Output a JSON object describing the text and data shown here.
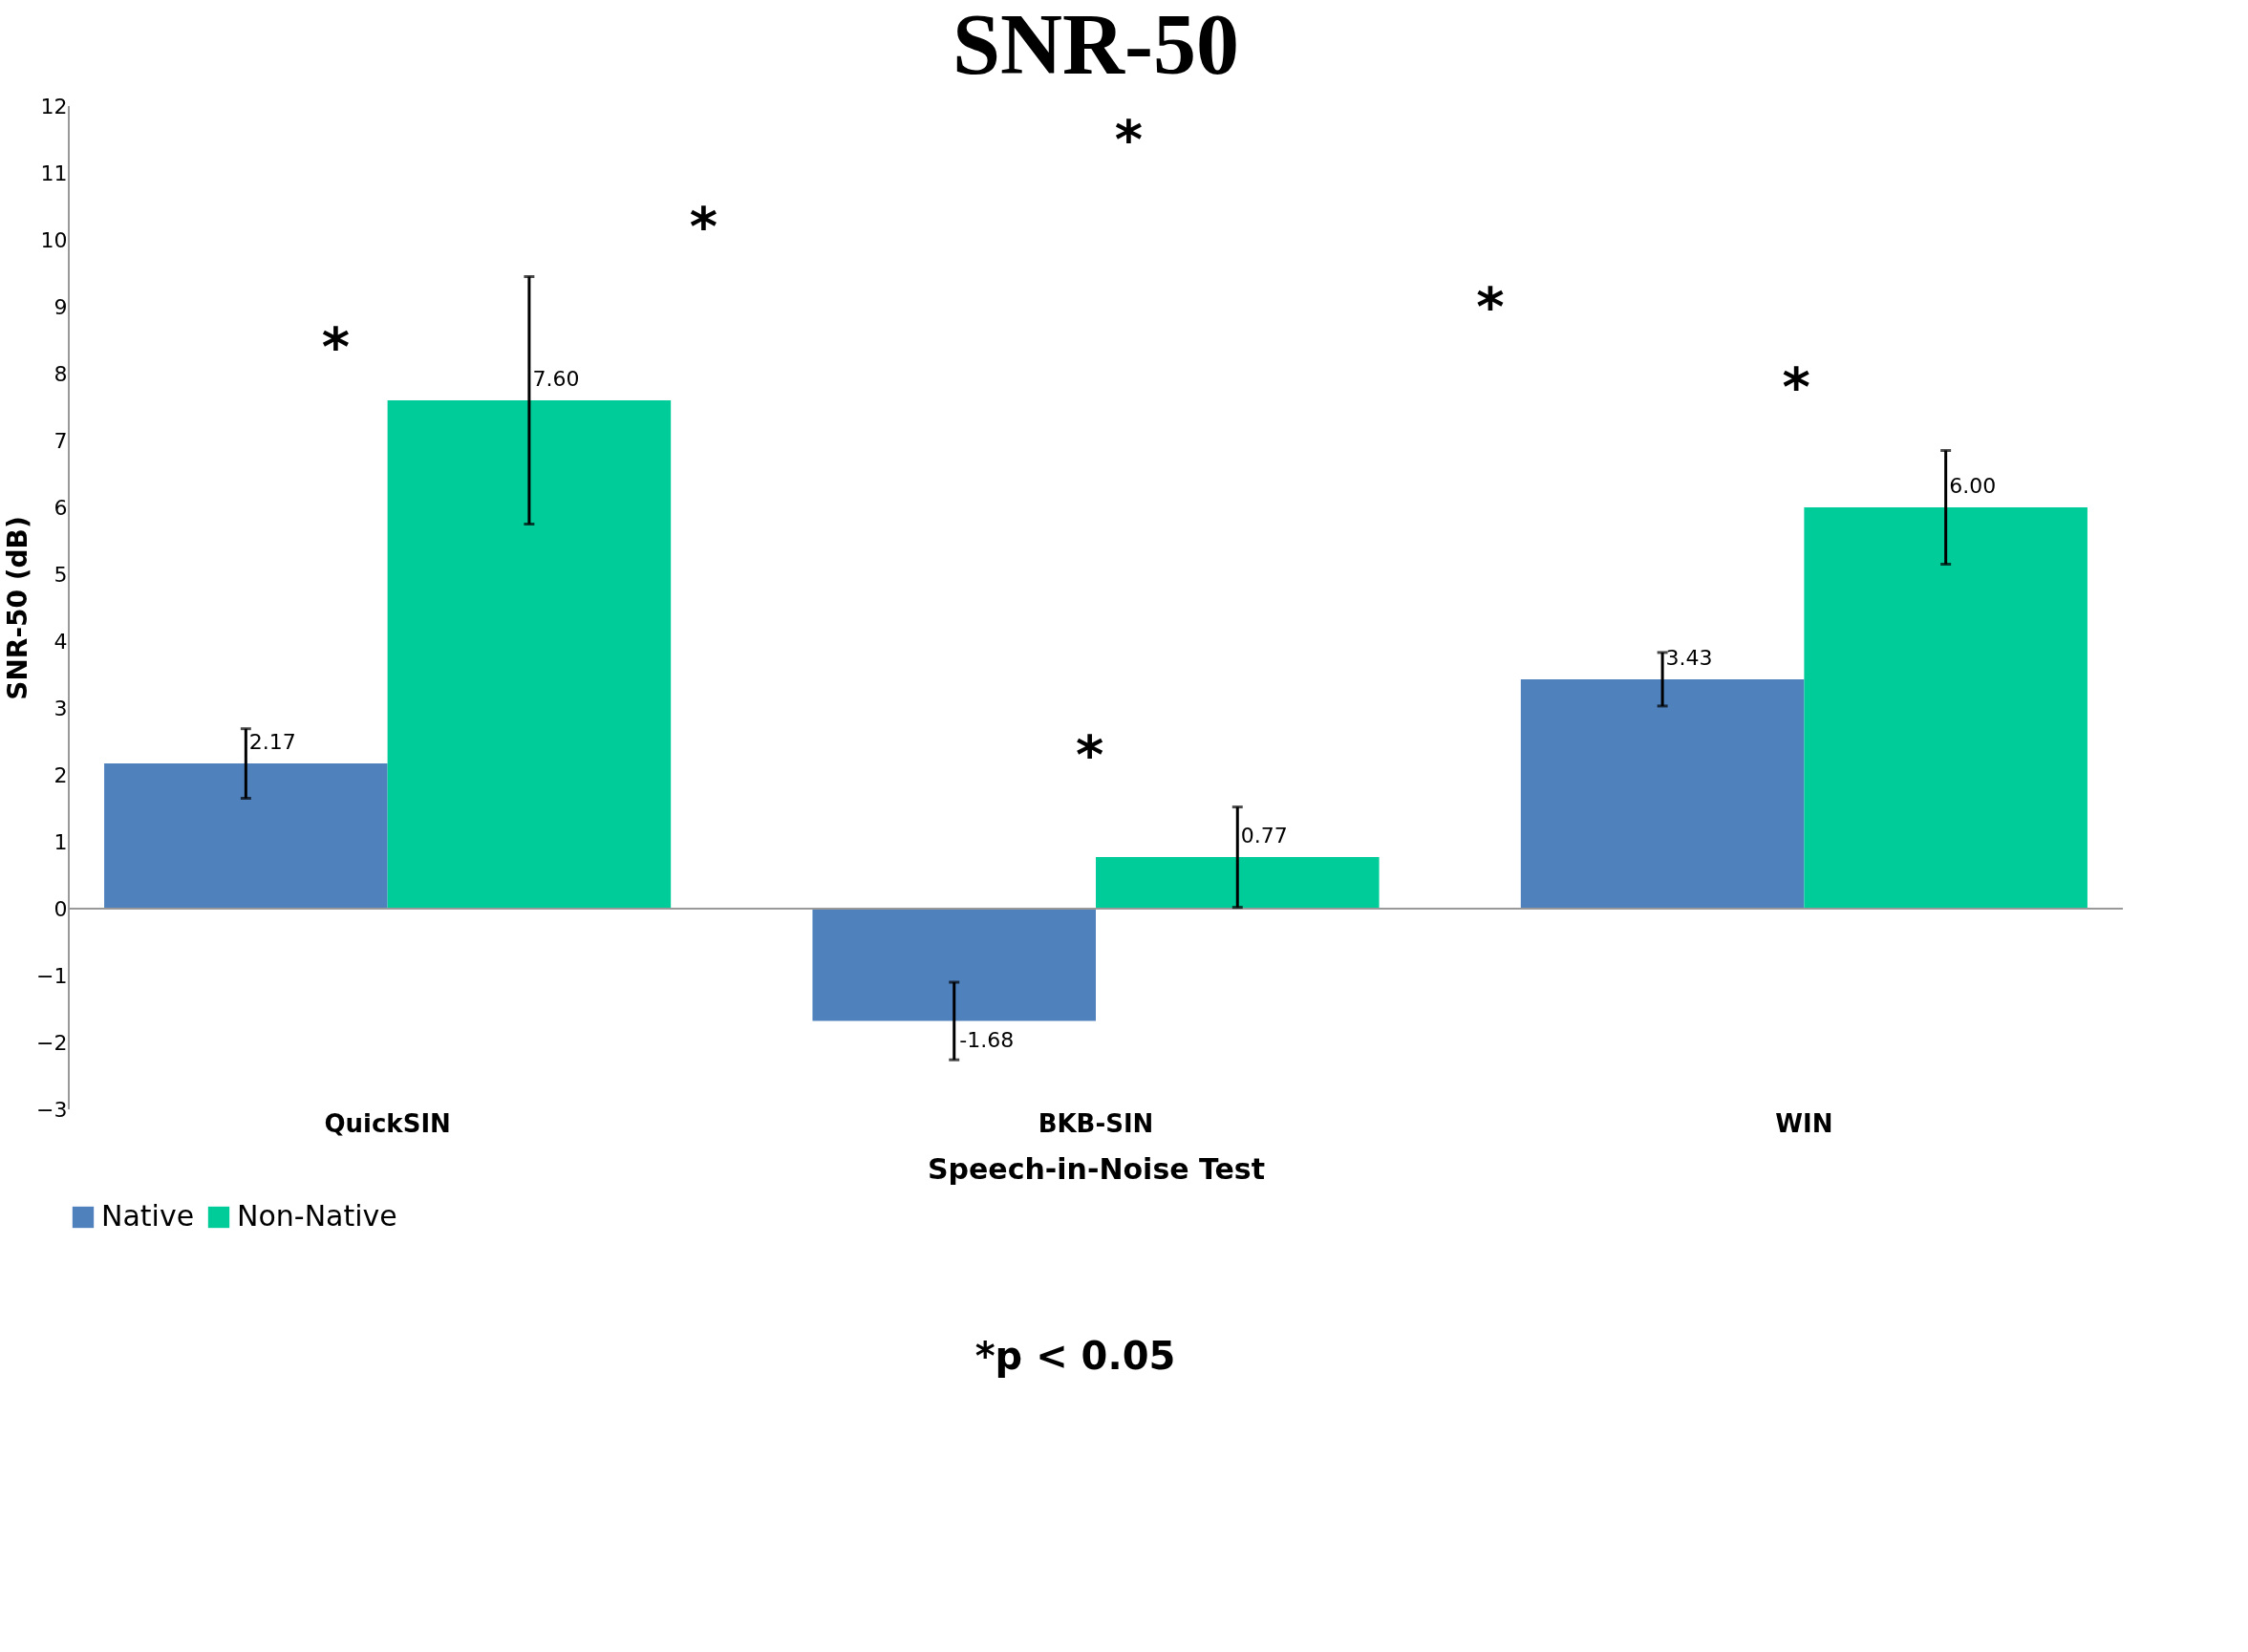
{
  "chart_data": {
    "type": "bar",
    "title": "SNR-50",
    "xlabel": "Speech-in-Noise Test",
    "ylabel": "SNR-50 (dB)",
    "categories": [
      "QuickSIN",
      "BKB-SIN",
      "WIN"
    ],
    "series": [
      {
        "name": "Native",
        "color": "#4f81bd",
        "values": [
          2.17,
          -1.68,
          3.43
        ],
        "errors": [
          0.52,
          0.58,
          0.4
        ],
        "value_labels": [
          "2.17",
          "-1.68",
          "3.43"
        ]
      },
      {
        "name": "Non-Native",
        "color": "#00cc99",
        "values": [
          7.6,
          0.77,
          6.0
        ],
        "errors": [
          1.85,
          0.75,
          0.85
        ],
        "value_labels": [
          "7.60",
          "0.77",
          "6.00"
        ]
      }
    ],
    "ylim": [
      -3,
      12
    ],
    "yticks": [
      -3,
      -2,
      -1,
      0,
      1,
      2,
      3,
      4,
      5,
      6,
      7,
      8,
      9,
      10,
      11,
      12
    ],
    "grid": false,
    "legend": "bottom",
    "ref_lines": [
      {
        "axis": "y",
        "value": 0,
        "color": "#999999"
      }
    ],
    "annotations": [
      "*",
      "*",
      "*",
      "*",
      "*",
      "*",
      "*p < 0.05"
    ]
  }
}
